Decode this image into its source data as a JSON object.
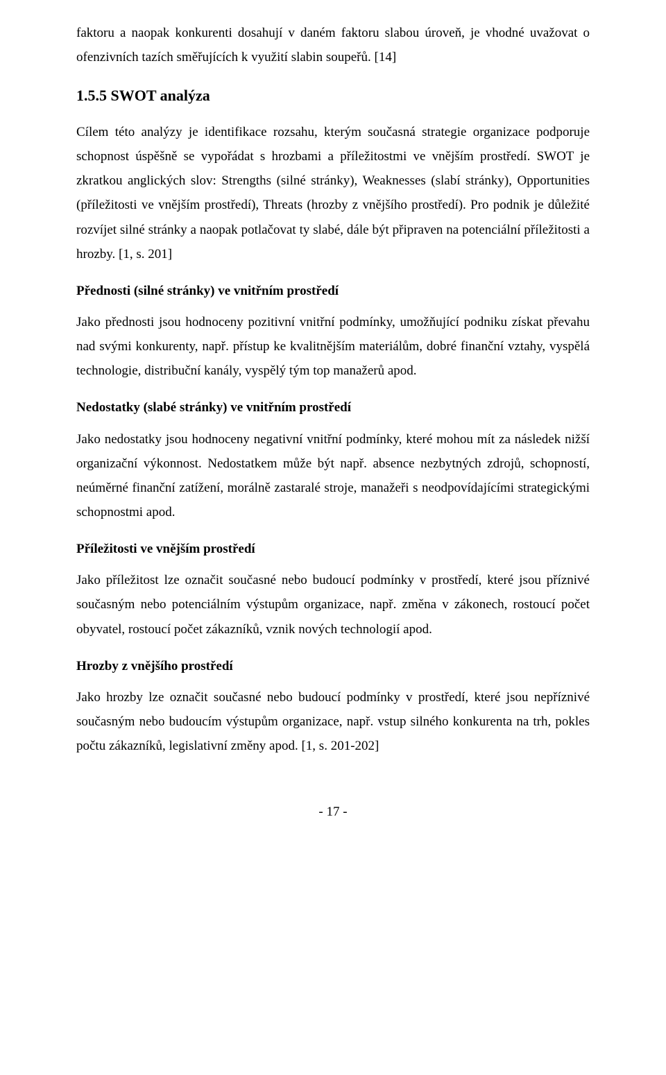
{
  "document": {
    "background_color": "#ffffff",
    "text_color": "#000000",
    "font_family": "Times New Roman",
    "body_fontsize_pt": 12,
    "heading_fontsize_pt": 14,
    "line_height": 1.85,
    "page_number": "- 17 -"
  },
  "intro_para": "faktoru a naopak konkurenti dosahují v daném faktoru slabou úroveň, je vhodné uvažovat o ofenzivních tazích směřujících k využití slabin soupeřů. [14]",
  "swot": {
    "heading": "1.5.5 SWOT analýza",
    "para1": "Cílem této analýzy je identifikace rozsahu, kterým současná strategie organizace podporuje schopnost úspěšně se vypořádat s hrozbami a příležitostmi ve vnějším prostředí. SWOT je zkratkou anglických slov: Strengths (silné stránky), Weaknesses (slabí stránky), Opportunities (příležitosti ve vnějším prostředí), Threats (hrozby z vnějšího prostředí). Pro podnik je důležité rozvíjet silné stránky a naopak potlačovat ty slabé, dále být připraven na potenciální příležitosti a hrozby. [1, s. 201]",
    "strengths_title": "Přednosti (silné stránky) ve vnitřním prostředí",
    "strengths_para": "Jako přednosti jsou hodnoceny pozitivní vnitřní podmínky, umožňující podniku získat převahu nad svými konkurenty, např. přístup ke kvalitnějším materiálům, dobré finanční vztahy, vyspělá technologie, distribuční kanály, vyspělý tým top manažerů apod.",
    "weaknesses_title": "Nedostatky (slabé stránky) ve vnitřním prostředí",
    "weaknesses_para": "Jako nedostatky jsou hodnoceny negativní vnitřní podmínky, které mohou mít za následek nižší organizační výkonnost. Nedostatkem může být např. absence nezbytných zdrojů, schopností, neúměrné finanční zatížení, morálně zastaralé stroje, manažeři s neodpovídajícími strategickými schopnostmi apod.",
    "opportunities_title": "Příležitosti ve vnějším prostředí",
    "opportunities_para": "Jako příležitost lze označit současné nebo budoucí podmínky v prostředí, které jsou příznivé současným nebo potenciálním výstupům organizace, např. změna v zákonech, rostoucí počet obyvatel, rostoucí počet zákazníků, vznik nových technologií apod.",
    "threats_title": "Hrozby z vnějšího prostředí",
    "threats_para": "Jako hrozby lze označit současné nebo budoucí podmínky v prostředí, které jsou nepříznivé současným nebo budoucím výstupům organizace, např. vstup silného konkurenta na trh, pokles počtu zákazníků, legislativní změny apod. [1, s. 201-202]"
  }
}
